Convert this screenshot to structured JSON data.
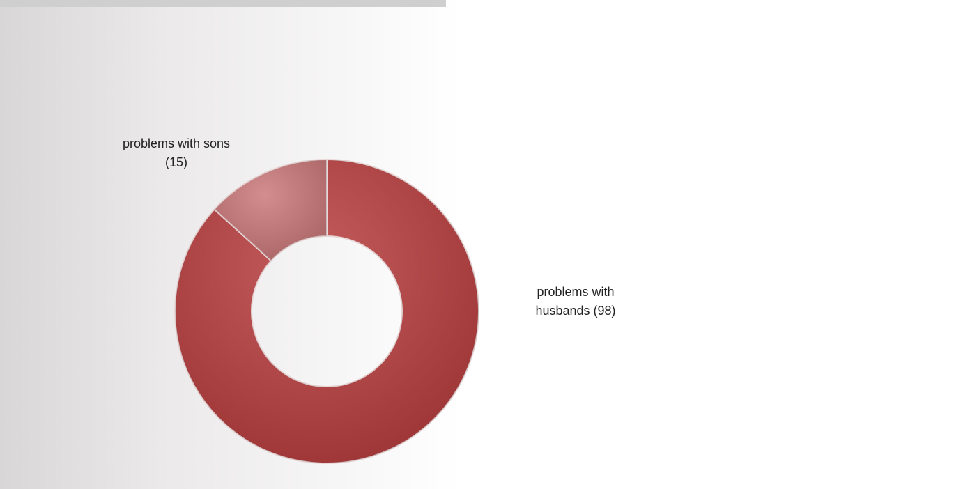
{
  "chart_data": {
    "type": "donut",
    "categories": [
      "problems with husbands (98)",
      "problems with sons (15)"
    ],
    "values": [
      98,
      15
    ],
    "colors": [
      "#b8393a",
      "#c97475"
    ]
  }
}
